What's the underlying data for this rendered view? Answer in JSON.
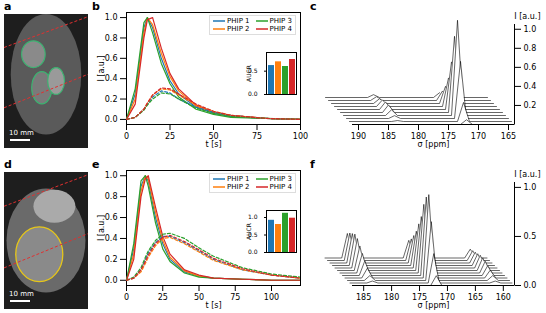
{
  "chart_data": [
    {
      "type": "image",
      "panel": "a",
      "scale_bar": "10 mm"
    },
    {
      "type": "line",
      "panel": "b",
      "xlabel": "t [s]",
      "ylabel": "I [a.u.]",
      "x": [
        0,
        5,
        10,
        12,
        15,
        20,
        25,
        30,
        40,
        50,
        60,
        80,
        100
      ],
      "xlim": [
        0,
        100
      ],
      "xticks": [
        0,
        25,
        50,
        75,
        100
      ],
      "ylim": [
        -0.05,
        1.05
      ],
      "yticks": [
        {
          "value": 0,
          "label": "0.0"
        },
        0.2,
        0.4,
        0.6,
        0.8,
        {
          "value": 1,
          "label": "1.0"
        }
      ],
      "legend": "upper right",
      "series": [
        {
          "name": "PHIP 1",
          "color": "#1f77b4",
          "line_style": "solid",
          "values": [
            0,
            0.25,
            0.9,
            1.0,
            0.9,
            0.6,
            0.38,
            0.25,
            0.12,
            0.06,
            0.03,
            0.01,
            0.0
          ]
        },
        {
          "name": "PHIP 2",
          "color": "#ff7f0e",
          "line_style": "solid",
          "values": [
            0,
            0.2,
            0.85,
            1.0,
            0.93,
            0.65,
            0.42,
            0.28,
            0.13,
            0.07,
            0.04,
            0.01,
            0.0
          ]
        },
        {
          "name": "PHIP 3",
          "color": "#2ca02c",
          "line_style": "solid",
          "values": [
            0,
            0.3,
            0.95,
            1.0,
            0.85,
            0.55,
            0.35,
            0.22,
            0.1,
            0.05,
            0.02,
            0.01,
            0.0
          ]
        },
        {
          "name": "PHIP 4",
          "color": "#d62728",
          "line_style": "solid",
          "values": [
            0,
            0.15,
            0.8,
            0.98,
            1.0,
            0.7,
            0.45,
            0.3,
            0.14,
            0.07,
            0.04,
            0.01,
            0.0
          ]
        },
        {
          "name": "PHIP 1",
          "color": "#1f77b4",
          "line_style": "dashed",
          "values": [
            0,
            0.02,
            0.1,
            0.15,
            0.22,
            0.28,
            0.26,
            0.2,
            0.12,
            0.07,
            0.04,
            0.01,
            0
          ]
        },
        {
          "name": "PHIP 2",
          "color": "#ff7f0e",
          "line_style": "dashed",
          "values": [
            0,
            0.02,
            0.1,
            0.16,
            0.24,
            0.3,
            0.29,
            0.24,
            0.14,
            0.08,
            0.04,
            0.01,
            0
          ]
        },
        {
          "name": "PHIP 3",
          "color": "#2ca02c",
          "line_style": "dashed",
          "values": [
            0,
            0.02,
            0.09,
            0.14,
            0.2,
            0.26,
            0.25,
            0.2,
            0.11,
            0.06,
            0.03,
            0.01,
            0
          ]
        },
        {
          "name": "PHIP 4",
          "color": "#d62728",
          "line_style": "dashed",
          "values": [
            0,
            0.02,
            0.1,
            0.16,
            0.24,
            0.31,
            0.3,
            0.25,
            0.15,
            0.08,
            0.04,
            0.01,
            0
          ]
        }
      ],
      "inset": {
        "type": "bar",
        "ylabel": "AUCR",
        "values": [
          0.62,
          0.7,
          0.6,
          0.75
        ],
        "colors": [
          "#1f77b4",
          "#ff7f0e",
          "#2ca02c",
          "#d62728"
        ],
        "ylim": [
          0,
          0.9
        ],
        "yticks": [
          {
            "value": 0,
            "label": "0.0"
          },
          0.5
        ]
      }
    },
    {
      "type": "waterfall",
      "panel": "c",
      "xlabel": "σ [ppm]",
      "ylabel": "I [a.u.]",
      "x": [
        191,
        184,
        183,
        182,
        173,
        172,
        171,
        164
      ],
      "xlim": [
        191,
        164
      ],
      "xticks": [
        190,
        185,
        180,
        175,
        170,
        165
      ],
      "ylim": [
        0,
        1.05
      ],
      "yticks": [
        0.2,
        0.4,
        0.6,
        0.8,
        {
          "value": 1,
          "label": "1.0"
        }
      ],
      "traces": [
        [
          0,
          0,
          0,
          0,
          0,
          0.05,
          0,
          0
        ],
        [
          0,
          0,
          0.01,
          0,
          0,
          0.2,
          0,
          0
        ],
        [
          0,
          0,
          0.03,
          0,
          0,
          0.6,
          0,
          0
        ],
        [
          0,
          0,
          0.06,
          0,
          0,
          1.0,
          0,
          0
        ],
        [
          0,
          0,
          0.08,
          0,
          0,
          0.8,
          0,
          0
        ],
        [
          0,
          0,
          0.08,
          0,
          0,
          0.5,
          0,
          0
        ],
        [
          0,
          0,
          0.07,
          0,
          0,
          0.3,
          0,
          0
        ],
        [
          0,
          0,
          0.05,
          0,
          0,
          0.18,
          0,
          0
        ],
        [
          0,
          0,
          0.04,
          0,
          0,
          0.1,
          0,
          0
        ],
        [
          0,
          0,
          0.03,
          0,
          0,
          0.05,
          0,
          0
        ]
      ]
    },
    {
      "type": "image",
      "panel": "d",
      "scale_bar": "10 mm"
    },
    {
      "type": "line",
      "panel": "e",
      "xlabel": "t [s]",
      "ylabel": "I [a.u.]",
      "x": [
        0,
        5,
        10,
        13,
        15,
        20,
        25,
        30,
        40,
        50,
        60,
        80,
        100,
        120
      ],
      "xlim": [
        0,
        120
      ],
      "xticks": [
        0,
        25,
        50,
        75,
        100
      ],
      "ylim": [
        -0.05,
        1.05
      ],
      "yticks": [
        {
          "value": 0,
          "label": "0.0"
        },
        0.2,
        0.4,
        0.6,
        0.8,
        {
          "value": 1,
          "label": "1.0"
        }
      ],
      "legend": "upper right",
      "series": [
        {
          "name": "PHIP 1",
          "color": "#1f77b4",
          "line_style": "solid",
          "values": [
            0,
            0.3,
            0.9,
            1.0,
            0.95,
            0.6,
            0.35,
            0.2,
            0.08,
            0.04,
            0.02,
            0.01,
            0,
            0
          ]
        },
        {
          "name": "PHIP 2",
          "color": "#ff7f0e",
          "line_style": "solid",
          "values": [
            0,
            0.25,
            0.85,
            1.0,
            0.97,
            0.65,
            0.38,
            0.22,
            0.09,
            0.04,
            0.02,
            0.01,
            0,
            0
          ]
        },
        {
          "name": "PHIP 3",
          "color": "#2ca02c",
          "line_style": "solid",
          "values": [
            0,
            0.35,
            0.95,
            1.0,
            0.9,
            0.55,
            0.3,
            0.18,
            0.07,
            0.03,
            0.02,
            0.01,
            0,
            0
          ]
        },
        {
          "name": "PHIP 4",
          "color": "#d62728",
          "line_style": "solid",
          "values": [
            0,
            0.2,
            0.8,
            0.97,
            1.0,
            0.7,
            0.42,
            0.25,
            0.1,
            0.05,
            0.02,
            0.01,
            0,
            0
          ]
        },
        {
          "name": "PHIP 1",
          "color": "#1f77b4",
          "line_style": "dashed",
          "values": [
            0,
            0.02,
            0.1,
            0.2,
            0.26,
            0.36,
            0.42,
            0.42,
            0.36,
            0.28,
            0.2,
            0.1,
            0.05,
            0.02
          ]
        },
        {
          "name": "PHIP 2",
          "color": "#ff7f0e",
          "line_style": "dashed",
          "values": [
            0,
            0.02,
            0.08,
            0.16,
            0.22,
            0.33,
            0.4,
            0.41,
            0.35,
            0.27,
            0.19,
            0.1,
            0.05,
            0.02
          ]
        },
        {
          "name": "PHIP 3",
          "color": "#2ca02c",
          "line_style": "dashed",
          "values": [
            0,
            0.03,
            0.12,
            0.22,
            0.28,
            0.38,
            0.44,
            0.45,
            0.4,
            0.31,
            0.23,
            0.12,
            0.06,
            0.03
          ]
        },
        {
          "name": "PHIP 4",
          "color": "#d62728",
          "line_style": "dashed",
          "values": [
            0,
            0.02,
            0.1,
            0.18,
            0.24,
            0.35,
            0.41,
            0.43,
            0.37,
            0.29,
            0.21,
            0.11,
            0.05,
            0.02
          ]
        }
      ],
      "inset": {
        "type": "bar",
        "ylabel": "AUCR",
        "values": [
          0.92,
          0.8,
          1.12,
          0.98
        ],
        "colors": [
          "#1f77b4",
          "#ff7f0e",
          "#2ca02c",
          "#d62728"
        ],
        "ylim": [
          0,
          1.2
        ],
        "yticks": [
          {
            "value": 0,
            "label": "0.0"
          },
          0.5,
          {
            "value": 1,
            "label": "1.0"
          }
        ]
      }
    },
    {
      "type": "waterfall",
      "panel": "f",
      "xlabel": "σ [ppm]",
      "ylabel": "I [a.u.]",
      "x": [
        187,
        184,
        183,
        182,
        173,
        172,
        171,
        162,
        161,
        160,
        158
      ],
      "xlim": [
        187,
        158
      ],
      "xticks": [
        185,
        180,
        175,
        170,
        165,
        160
      ],
      "ylim": [
        0,
        1.05
      ],
      "yticks": [
        {
          "value": 0,
          "label": "0.0"
        },
        0.5,
        {
          "value": 1,
          "label": "1.0"
        }
      ],
      "traces": [
        [
          0,
          0,
          0,
          0,
          0,
          0.1,
          0,
          0,
          0,
          0,
          0
        ],
        [
          0,
          0,
          0.02,
          0,
          0,
          0.3,
          0,
          0,
          0.02,
          0,
          0
        ],
        [
          0,
          0,
          0.05,
          0,
          0,
          0.6,
          0,
          0,
          0.05,
          0,
          0
        ],
        [
          0,
          0,
          0.1,
          0,
          0,
          0.85,
          0,
          0,
          0.08,
          0,
          0
        ],
        [
          0,
          0,
          0.15,
          0,
          0,
          0.8,
          0,
          0,
          0.1,
          0,
          0
        ],
        [
          0,
          0,
          0.2,
          0,
          0,
          0.7,
          0,
          0,
          0.12,
          0,
          0
        ],
        [
          0,
          0,
          0.25,
          0,
          0,
          0.55,
          0,
          0,
          0.13,
          0,
          0
        ],
        [
          0,
          0,
          0.3,
          0,
          0,
          0.45,
          0,
          0,
          0.13,
          0,
          0
        ],
        [
          0,
          0,
          0.32,
          0,
          0,
          0.35,
          0,
          0,
          0.12,
          0,
          0
        ],
        [
          0,
          0,
          0.3,
          0,
          0,
          0.28,
          0,
          0,
          0.11,
          0,
          0
        ],
        [
          0,
          0,
          0.28,
          0,
          0,
          0.22,
          0,
          0,
          0.1,
          0,
          0
        ],
        [
          0,
          0,
          0.25,
          0,
          0,
          0.18,
          0,
          0,
          0.09,
          0,
          0
        ]
      ]
    }
  ]
}
